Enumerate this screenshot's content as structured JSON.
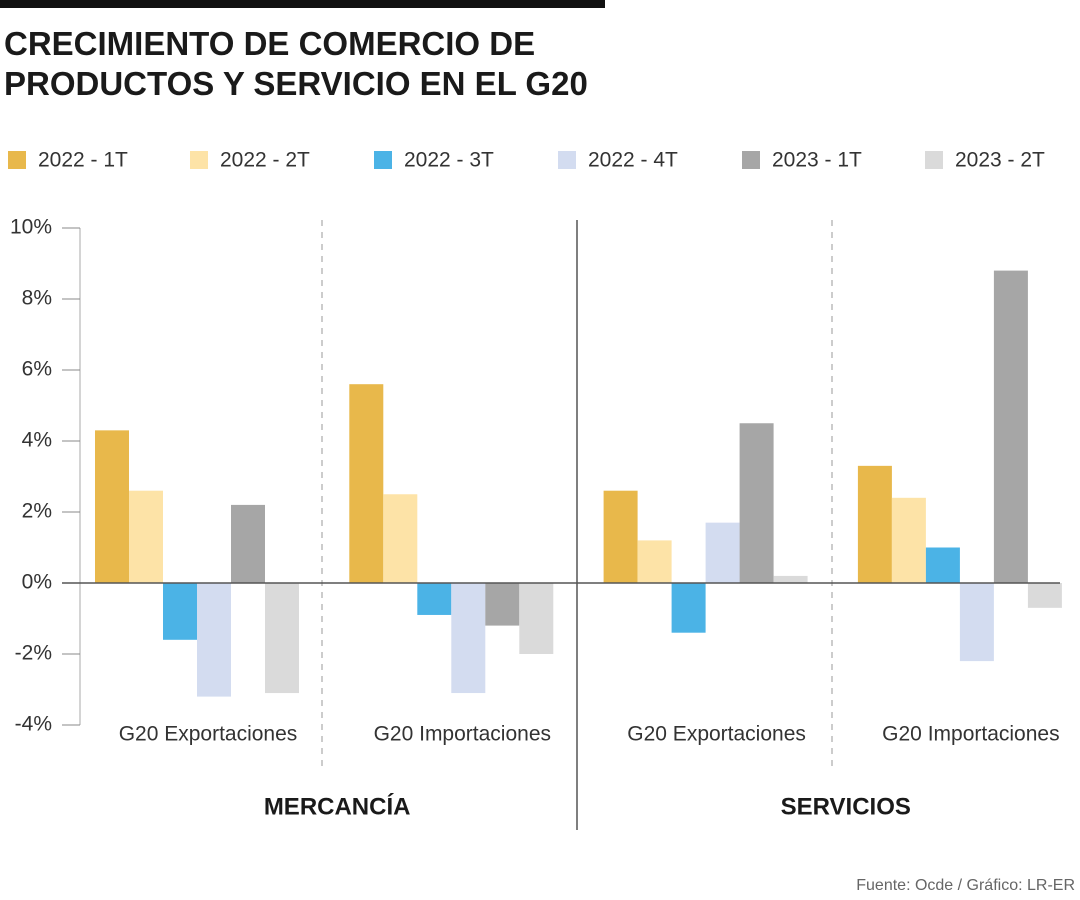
{
  "chart_data": {
    "type": "bar",
    "title": "CRECIMIENTO DE COMERCIO DE PRODUCTOS Y SERVICIO EN EL G20",
    "categories": [
      "G20 Exportaciones",
      "G20 Importaciones",
      "G20 Exportaciones",
      "G20 Importaciones"
    ],
    "groups": [
      "MERCANCÍA",
      "SERVICIOS"
    ],
    "series": [
      {
        "name": "2022 - 1T",
        "color": "#e8b84b",
        "values": [
          4.3,
          5.6,
          2.6,
          3.3
        ]
      },
      {
        "name": "2022 - 2T",
        "color": "#fde3a7",
        "values": [
          2.6,
          2.5,
          1.2,
          2.4
        ]
      },
      {
        "name": "2022 - 3T",
        "color": "#4bb3e6",
        "values": [
          -1.6,
          -0.9,
          -1.4,
          1.0
        ]
      },
      {
        "name": "2022 - 4T",
        "color": "#d3dcf0",
        "values": [
          -3.2,
          -3.1,
          1.7,
          -2.2
        ]
      },
      {
        "name": "2023 - 1T",
        "color": "#a6a6a6",
        "values": [
          2.2,
          -1.2,
          4.5,
          8.8
        ]
      },
      {
        "name": "2023 - 2T",
        "color": "#dadada",
        "values": [
          -3.1,
          -2.0,
          0.2,
          -0.7
        ]
      }
    ],
    "ylim": [
      -4,
      10
    ],
    "yticks": [
      {
        "value": -4,
        "label": "-4%"
      },
      {
        "value": -2,
        "label": "-2%"
      },
      {
        "value": 0,
        "label": "0%"
      },
      {
        "value": 2,
        "label": "2%"
      },
      {
        "value": 4,
        "label": "4%"
      },
      {
        "value": 6,
        "label": "6%"
      },
      {
        "value": 8,
        "label": "8%"
      },
      {
        "value": 10,
        "label": "10%"
      }
    ],
    "source": "Fuente: Ocde / Gráfico: LR-ER"
  }
}
